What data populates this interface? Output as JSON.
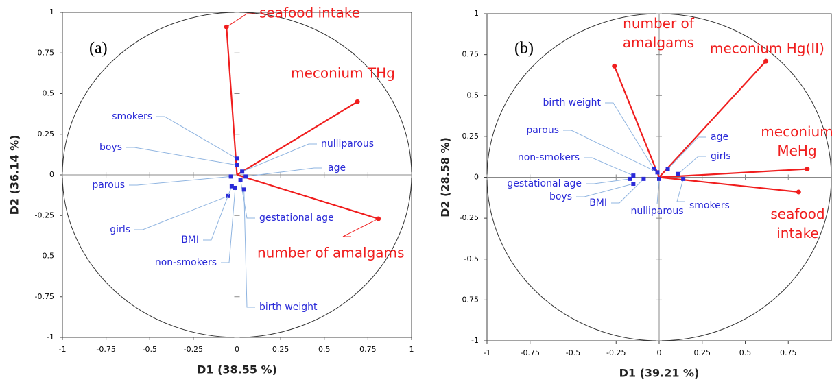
{
  "chart_data": [
    {
      "type": "correlation-circle",
      "panel_label": "(a)",
      "xlabel": "D1 (38.55 %)",
      "ylabel": "D2 (36.14 %)",
      "xlim": [
        -1,
        1
      ],
      "ylim": [
        -1,
        1
      ],
      "xticks": [
        -1,
        -0.75,
        -0.5,
        -0.25,
        0,
        0.25,
        0.5,
        0.75,
        1
      ],
      "yticks": [
        -1,
        -0.75,
        -0.5,
        -0.25,
        0,
        0.25,
        0.5,
        0.75,
        1
      ],
      "points": [
        {
          "label": "seafood intake",
          "x": -0.06,
          "y": 0.91,
          "color": "#f01e1e",
          "marker": "circle",
          "vector": true
        },
        {
          "label": "meconium THg",
          "x": 0.69,
          "y": 0.45,
          "color": "#f01e1e",
          "marker": "circle",
          "vector": true
        },
        {
          "label": "number of amalgams",
          "x": 0.81,
          "y": -0.27,
          "color": "#f01e1e",
          "marker": "circle",
          "vector": true
        },
        {
          "label": "smokers",
          "x": 0.0,
          "y": 0.1,
          "color": "#2a2ad8",
          "marker": "square",
          "vector": false
        },
        {
          "label": "boys",
          "x": 0.0,
          "y": 0.06,
          "color": "#2a2ad8",
          "marker": "square",
          "vector": false
        },
        {
          "label": "nulliparous",
          "x": 0.03,
          "y": 0.02,
          "color": "#2a2ad8",
          "marker": "square",
          "vector": false
        },
        {
          "label": "age",
          "x": 0.05,
          "y": -0.01,
          "color": "#2a2ad8",
          "marker": "square",
          "vector": false
        },
        {
          "label": "parous",
          "x": -0.035,
          "y": -0.01,
          "color": "#2a2ad8",
          "marker": "square",
          "vector": false
        },
        {
          "label": "gestational age",
          "x": 0.02,
          "y": -0.03,
          "color": "#2a2ad8",
          "marker": "square",
          "vector": false
        },
        {
          "label": "girls",
          "x": -0.05,
          "y": -0.13,
          "color": "#2a2ad8",
          "marker": "square",
          "vector": false
        },
        {
          "label": "BMI",
          "x": -0.03,
          "y": -0.07,
          "color": "#2a2ad8",
          "marker": "square",
          "vector": false
        },
        {
          "label": "non-smokers",
          "x": -0.01,
          "y": -0.08,
          "color": "#2a2ad8",
          "marker": "square",
          "vector": false
        },
        {
          "label": "birth weight",
          "x": 0.04,
          "y": -0.09,
          "color": "#2a2ad8",
          "marker": "square",
          "vector": false
        }
      ]
    },
    {
      "type": "correlation-circle",
      "panel_label": "(b)",
      "xlabel": "D1 (39.21 %)",
      "ylabel": "D2 (28.58 %)",
      "xlim": [
        -1,
        1
      ],
      "ylim": [
        -1,
        1
      ],
      "xticks": [
        -1,
        -0.75,
        -0.5,
        -0.25,
        0,
        0.25,
        0.5,
        0.75
      ],
      "yticks": [
        -1,
        -0.75,
        -0.5,
        -0.25,
        0,
        0.25,
        0.5,
        0.75,
        1
      ],
      "points": [
        {
          "label": "number of amalgams",
          "x": -0.26,
          "y": 0.68,
          "color": "#f01e1e",
          "marker": "circle",
          "vector": true
        },
        {
          "label": "meconium Hg(II)",
          "x": 0.62,
          "y": 0.71,
          "color": "#f01e1e",
          "marker": "circle",
          "vector": true
        },
        {
          "label": "meconium MeHg",
          "x": 0.86,
          "y": 0.05,
          "color": "#f01e1e",
          "marker": "circle",
          "vector": true
        },
        {
          "label": "seafood intake",
          "x": 0.81,
          "y": -0.09,
          "color": "#f01e1e",
          "marker": "circle",
          "vector": true
        },
        {
          "label": "birth weight",
          "x": -0.03,
          "y": 0.05,
          "color": "#2a2ad8",
          "marker": "square",
          "vector": false
        },
        {
          "label": "parous",
          "x": -0.01,
          "y": 0.03,
          "color": "#2a2ad8",
          "marker": "square",
          "vector": false
        },
        {
          "label": "non-smokers",
          "x": -0.15,
          "y": 0.01,
          "color": "#2a2ad8",
          "marker": "square",
          "vector": false
        },
        {
          "label": "gestational age",
          "x": -0.17,
          "y": -0.01,
          "color": "#2a2ad8",
          "marker": "square",
          "vector": false
        },
        {
          "label": "boys",
          "x": -0.15,
          "y": -0.04,
          "color": "#2a2ad8",
          "marker": "square",
          "vector": false
        },
        {
          "label": "BMI",
          "x": -0.09,
          "y": -0.01,
          "color": "#2a2ad8",
          "marker": "square",
          "vector": false
        },
        {
          "label": "nulliparous",
          "x": 0.0,
          "y": -0.01,
          "color": "#2a2ad8",
          "marker": "square",
          "vector": false
        },
        {
          "label": "smokers",
          "x": 0.14,
          "y": -0.01,
          "color": "#2a2ad8",
          "marker": "square",
          "vector": false
        },
        {
          "label": "age",
          "x": 0.05,
          "y": 0.05,
          "color": "#2a2ad8",
          "marker": "square",
          "vector": false
        },
        {
          "label": "girls",
          "x": 0.11,
          "y": 0.02,
          "color": "#2a2ad8",
          "marker": "square",
          "vector": false
        }
      ]
    }
  ]
}
